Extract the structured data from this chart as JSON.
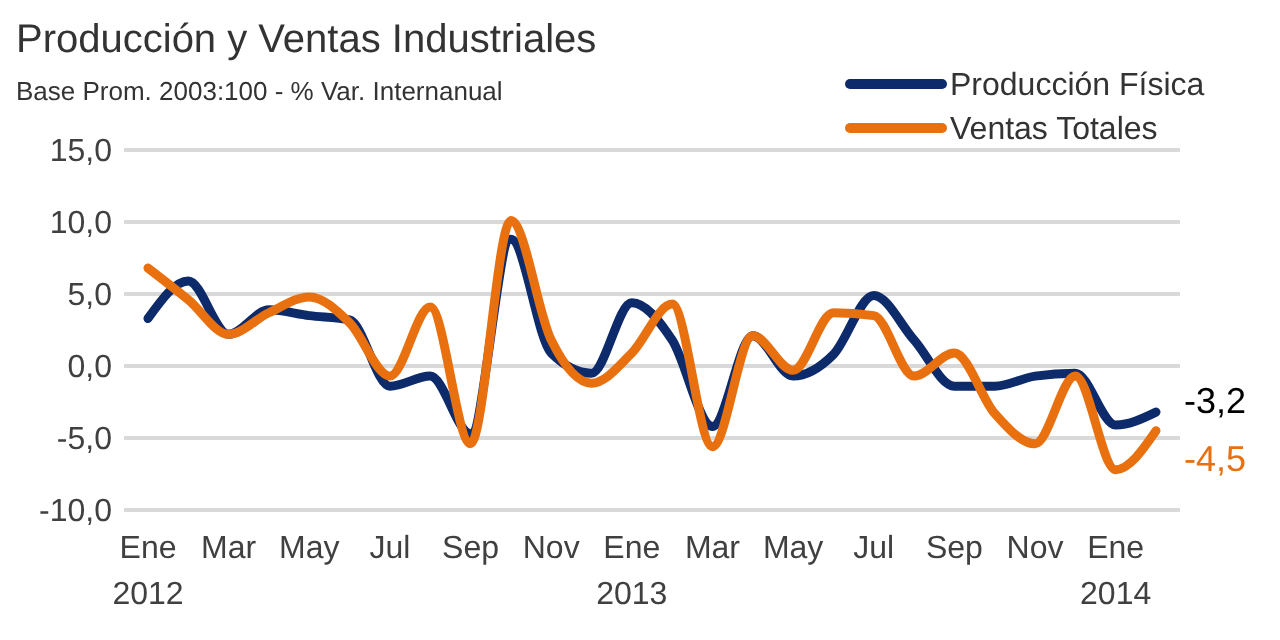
{
  "chart_data": {
    "type": "line",
    "title": "Producción y Ventas Industriales",
    "subtitle": "Base Prom. 2003:100 - % Var. Internanual",
    "categories": [
      "Ene 2012",
      null,
      "Mar",
      null,
      "May",
      null,
      "Jul",
      null,
      "Sep",
      null,
      "Nov",
      null,
      "Ene 2013",
      null,
      "Mar",
      null,
      "May",
      null,
      "Jul",
      null,
      "Sep",
      null,
      "Nov",
      null,
      "Ene 2014",
      null
    ],
    "series": [
      {
        "name": "Producción Física",
        "color": "#0d2a6b",
        "values": [
          3.3,
          5.9,
          2.2,
          3.9,
          3.5,
          3.2,
          -1.4,
          -0.7,
          -4.7,
          8.8,
          0.9,
          -0.5,
          4.4,
          1.8,
          -4.2,
          2.1,
          -0.7,
          0.8,
          4.9,
          1.8,
          -1.4,
          -1.4,
          -0.7,
          -0.5,
          -4.1,
          -3.2
        ],
        "value_labels": [
          null,
          null,
          null,
          null,
          null,
          null,
          null,
          null,
          null,
          null,
          null,
          null,
          null,
          null,
          null,
          null,
          null,
          null,
          null,
          null,
          null,
          null,
          null,
          null,
          null,
          "-3,2"
        ]
      },
      {
        "name": "Ventas Totales",
        "color": "#e8700f",
        "values": [
          6.8,
          4.6,
          2.2,
          3.7,
          4.8,
          3.0,
          -0.7,
          4.1,
          -5.4,
          10.1,
          1.8,
          -1.2,
          0.9,
          4.3,
          -5.6,
          2.1,
          -0.3,
          3.7,
          3.5,
          -0.7,
          0.9,
          -3.3,
          -5.4,
          -0.7,
          -7.2,
          -4.5
        ],
        "value_labels": [
          null,
          null,
          null,
          null,
          null,
          null,
          null,
          null,
          null,
          null,
          null,
          null,
          null,
          null,
          null,
          null,
          null,
          null,
          null,
          null,
          null,
          null,
          null,
          null,
          null,
          "-4,5"
        ]
      }
    ],
    "ylim": [
      -10,
      15
    ],
    "yticks": [
      {
        "value": -10,
        "label": "-10,0"
      },
      {
        "value": -5,
        "label": "-5,0"
      },
      {
        "value": 0,
        "label": "0,0"
      },
      {
        "value": 5,
        "label": "5,0"
      },
      {
        "value": 10,
        "label": "10,0"
      },
      {
        "value": 15,
        "label": "15,0"
      }
    ],
    "grid": "y",
    "legend": "top right",
    "marker": "none",
    "line_style": "solid"
  }
}
